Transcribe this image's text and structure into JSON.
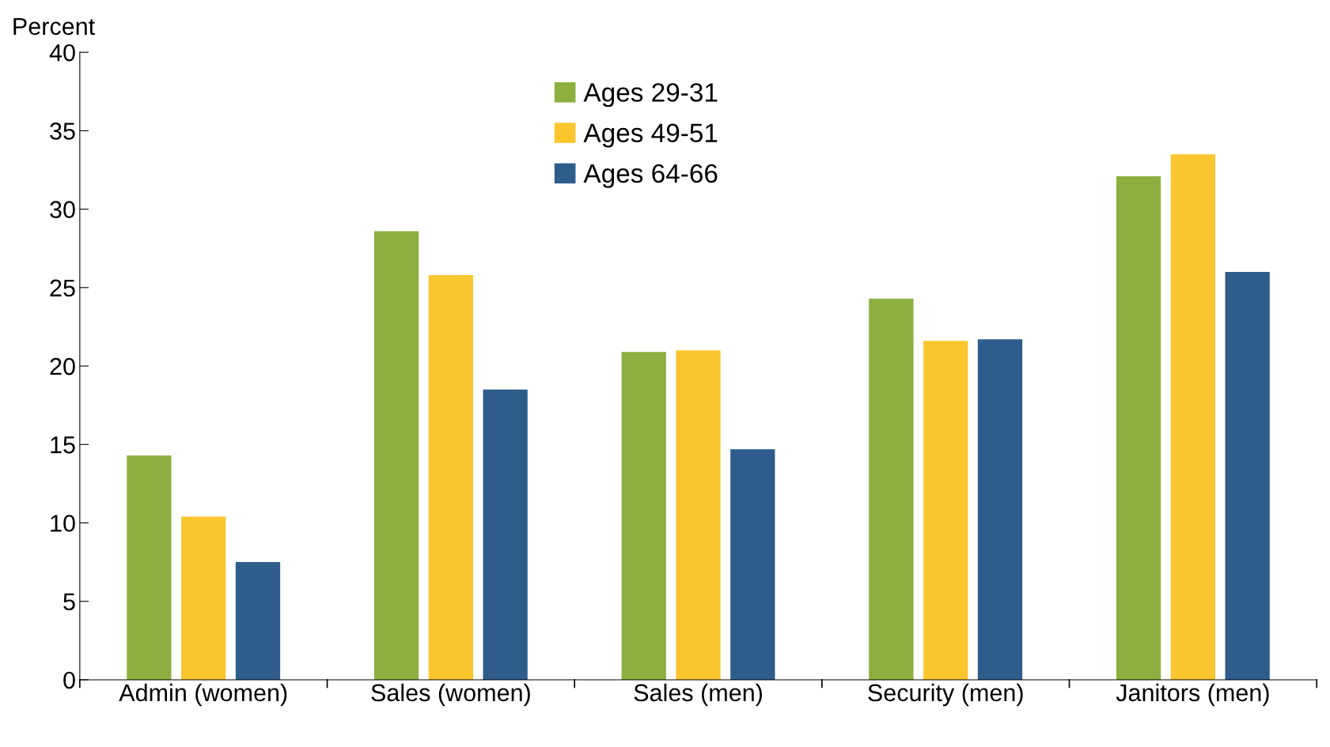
{
  "chart_data": {
    "type": "bar",
    "ylabel": "Percent",
    "categories": [
      "Admin (women)",
      "Sales (women)",
      "Sales (men)",
      "Security (men)",
      "Janitors (men)"
    ],
    "series": [
      {
        "name": "Ages 29-31",
        "color": "#8cb040",
        "values": [
          14.3,
          28.6,
          20.9,
          24.3,
          32.1
        ]
      },
      {
        "name": "Ages 49-51",
        "color": "#fbc52e",
        "values": [
          10.4,
          25.8,
          21.0,
          21.6,
          33.5
        ]
      },
      {
        "name": "Ages 64-66",
        "color": "#2e5d8c",
        "values": [
          7.5,
          18.5,
          14.7,
          21.7,
          26.0
        ]
      }
    ],
    "ylim": [
      0,
      40
    ],
    "yticks": [
      0,
      5,
      10,
      15,
      20,
      25,
      30,
      35,
      40
    ],
    "grid": false,
    "legend": "top"
  }
}
